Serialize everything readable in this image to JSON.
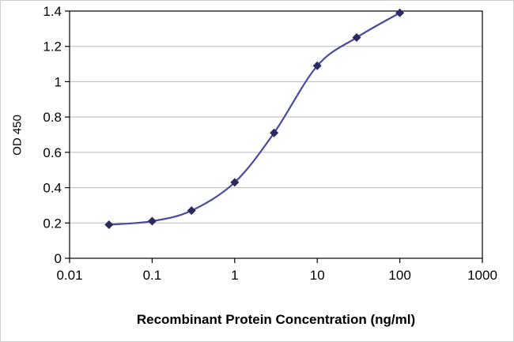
{
  "chart_data": {
    "type": "line",
    "title": "",
    "xlabel": "Recombinant Protein Concentration (ng/ml)",
    "ylabel": "OD 450",
    "xscale": "log",
    "xlim": [
      0.01,
      1000
    ],
    "ylim": [
      0,
      1.4
    ],
    "x": [
      0.03,
      0.1,
      0.3,
      1,
      3,
      10,
      30,
      100
    ],
    "y": [
      0.19,
      0.21,
      0.27,
      0.43,
      0.71,
      1.09,
      1.25,
      1.39
    ],
    "x_ticks": [
      0.01,
      0.1,
      1,
      10,
      100,
      1000
    ],
    "x_tick_labels": [
      "0.01",
      "0.1",
      "1",
      "10",
      "100",
      "1000"
    ],
    "y_ticks": [
      0,
      0.2,
      0.4,
      0.6,
      0.8,
      1,
      1.2,
      1.4
    ],
    "y_tick_labels": [
      "0",
      "0.2",
      "0.4",
      "0.6",
      "0.8",
      "1",
      "1.2",
      "1.4"
    ],
    "grid": "horizontal",
    "legend": "none",
    "marker": "diamond",
    "colors": {
      "line": "#4a4a9e",
      "marker": "#2a2a5e",
      "grid": "#b8b8b8",
      "axis": "#000000",
      "text": "#000000",
      "background": "#ffffff"
    }
  }
}
